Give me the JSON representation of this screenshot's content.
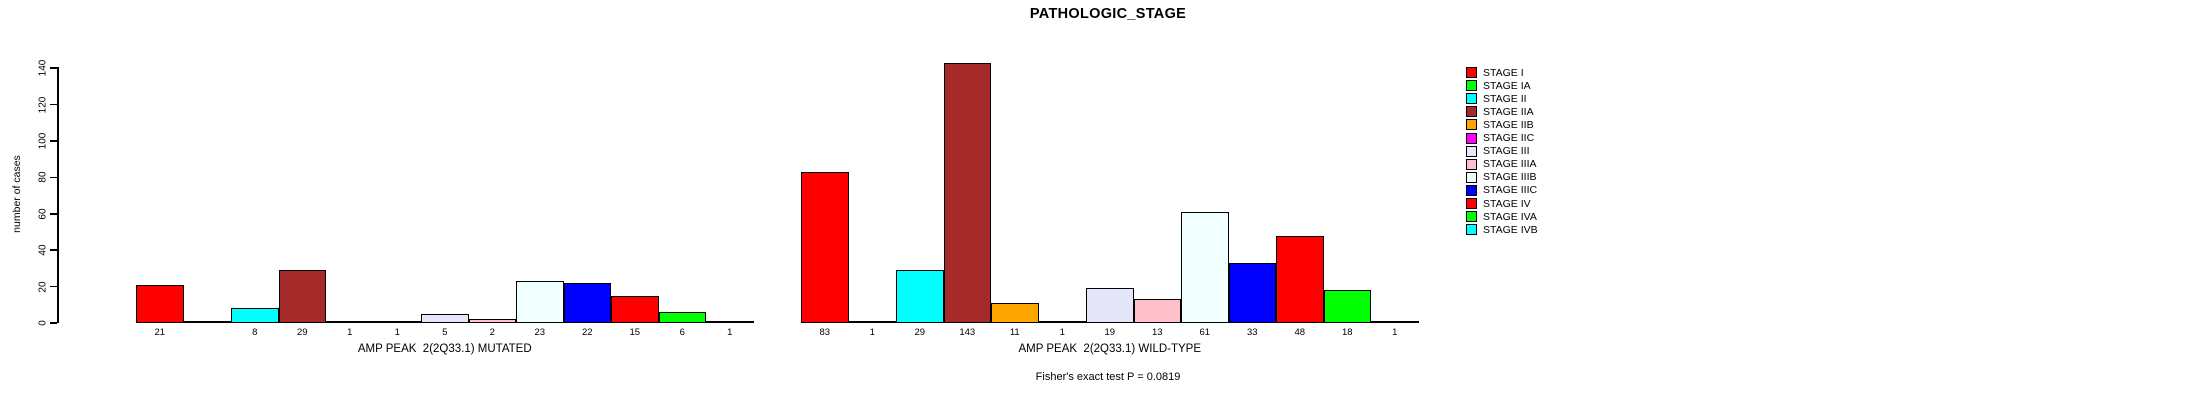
{
  "chart_data": {
    "type": "bar",
    "title": "PATHOLOGIC_STAGE",
    "ylabel": "number of cases",
    "ylim": [
      0,
      140
    ],
    "yticks": [
      0,
      20,
      40,
      60,
      80,
      100,
      120,
      140
    ],
    "grid": false,
    "legend_position": "right",
    "categories": [
      "STAGE I",
      "STAGE IA",
      "STAGE II",
      "STAGE IIA",
      "STAGE IIB",
      "STAGE IIC",
      "STAGE III",
      "STAGE IIIA",
      "STAGE IIIB",
      "STAGE IIIC",
      "STAGE IV",
      "STAGE IVA",
      "STAGE IVB"
    ],
    "colors": [
      "#FF0000",
      "#00FF00",
      "#00FFFF",
      "#A52A2A",
      "#FFA500",
      "#FF00FF",
      "#E6E6FA",
      "#FFC0CB",
      "#F0FFFF",
      "#0000FF",
      "#FF0000",
      "#00FF00",
      "#00FFFF"
    ],
    "series": [
      {
        "name": "AMP PEAK  2(2Q33.1) MUTATED",
        "values": [
          21,
          0,
          8,
          29,
          1,
          1,
          5,
          2,
          23,
          22,
          15,
          6,
          1
        ]
      },
      {
        "name": "AMP PEAK  2(2Q33.1) WILD-TYPE",
        "values": [
          83,
          1,
          29,
          143,
          11,
          1,
          19,
          13,
          61,
          33,
          48,
          18,
          1
        ]
      }
    ],
    "value_labels_visible": true,
    "footnote": "Fisher's exact test P = 0.0819",
    "axis_color": "#000000",
    "background_color": "#FFFFFF"
  }
}
